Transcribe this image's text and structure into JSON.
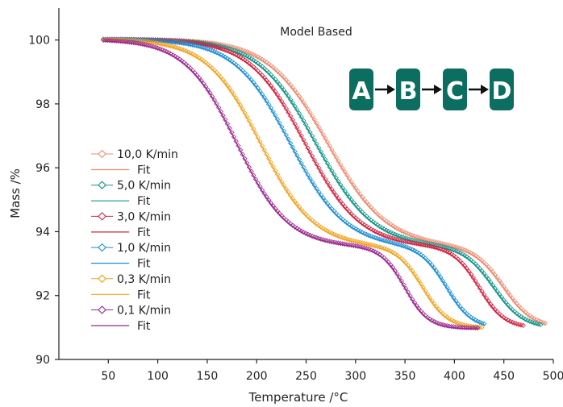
{
  "chart_data": {
    "type": "line",
    "title": "",
    "annotation": "Model Based",
    "xlabel": "Temperature /°C",
    "ylabel": "Mass /%",
    "xlim": [
      0,
      500
    ],
    "ylim": [
      90,
      101
    ],
    "xticks": [
      50,
      100,
      150,
      200,
      250,
      300,
      350,
      400,
      450,
      500
    ],
    "yticks": [
      90,
      92,
      94,
      96,
      98,
      100
    ],
    "grid": false,
    "legend_position": "left",
    "reaction_scheme": [
      "A",
      "B",
      "C",
      "D"
    ],
    "scheme_color": "#0c6e60",
    "series": [
      {
        "name": "10,0 K/min",
        "fit_label": "Fit",
        "color": "#ef8a6e",
        "x_start": 45,
        "x_end": 493,
        "t1": 272,
        "w1": 30,
        "t2": 450,
        "w2": 15,
        "points": [
          [
            45,
            100.0
          ],
          [
            150,
            99.9
          ],
          [
            200,
            99.6
          ],
          [
            250,
            98.6
          ],
          [
            275,
            97.2
          ],
          [
            300,
            95.6
          ],
          [
            325,
            94.5
          ],
          [
            350,
            93.9
          ],
          [
            400,
            93.3
          ],
          [
            430,
            92.6
          ],
          [
            450,
            91.9
          ],
          [
            470,
            91.2
          ],
          [
            493,
            90.9
          ]
        ]
      },
      {
        "name": "5,0 K/min",
        "fit_label": "Fit",
        "color": "#12968a",
        "x_start": 45,
        "x_end": 488,
        "t1": 260,
        "w1": 29,
        "t2": 440,
        "w2": 15,
        "points": [
          [
            45,
            100.0
          ],
          [
            150,
            99.9
          ],
          [
            200,
            99.5
          ],
          [
            250,
            98.0
          ],
          [
            275,
            96.4
          ],
          [
            300,
            95.0
          ],
          [
            325,
            94.2
          ],
          [
            350,
            93.8
          ],
          [
            400,
            93.2
          ],
          [
            430,
            92.2
          ],
          [
            450,
            91.3
          ],
          [
            470,
            91.0
          ],
          [
            488,
            90.9
          ]
        ]
      },
      {
        "name": "3,0 K/min",
        "fit_label": "Fit",
        "color": "#d2233f",
        "x_start": 45,
        "x_end": 470,
        "t1": 249,
        "w1": 28,
        "t2": 425,
        "w2": 13,
        "points": [
          [
            45,
            100.0
          ],
          [
            150,
            99.9
          ],
          [
            200,
            99.3
          ],
          [
            250,
            97.6
          ],
          [
            275,
            96.0
          ],
          [
            300,
            94.6
          ],
          [
            325,
            94.0
          ],
          [
            350,
            93.6
          ],
          [
            400,
            92.9
          ],
          [
            425,
            91.9
          ],
          [
            450,
            91.1
          ],
          [
            470,
            90.9
          ]
        ]
      },
      {
        "name": "1,0 K/min",
        "fit_label": "Fit",
        "color": "#1a8fd4",
        "x_start": 45,
        "x_end": 432,
        "t1": 234,
        "w1": 28,
        "t2": 392,
        "w2": 13,
        "points": [
          [
            45,
            100.0
          ],
          [
            150,
            99.8
          ],
          [
            200,
            98.9
          ],
          [
            225,
            97.8
          ],
          [
            250,
            96.2
          ],
          [
            275,
            95.0
          ],
          [
            300,
            94.0
          ],
          [
            350,
            93.3
          ],
          [
            380,
            92.6
          ],
          [
            400,
            91.7
          ],
          [
            420,
            91.2
          ],
          [
            432,
            91.1
          ]
        ]
      },
      {
        "name": "0,3 K/min",
        "fit_label": "Fit",
        "color": "#f2a21c",
        "x_start": 45,
        "x_end": 428,
        "t1": 204,
        "w1": 27,
        "t2": 368,
        "w2": 13,
        "points": [
          [
            45,
            100.0
          ],
          [
            150,
            99.6
          ],
          [
            175,
            98.9
          ],
          [
            200,
            97.5
          ],
          [
            225,
            95.9
          ],
          [
            250,
            94.5
          ],
          [
            275,
            93.9
          ],
          [
            320,
            93.3
          ],
          [
            350,
            92.6
          ],
          [
            380,
            91.6
          ],
          [
            400,
            91.1
          ],
          [
            428,
            90.9
          ]
        ]
      },
      {
        "name": "0,1 K/min",
        "fit_label": "Fit",
        "color": "#9b278f",
        "x_start": 45,
        "x_end": 425,
        "t1": 180,
        "w1": 26,
        "t2": 350,
        "w2": 12,
        "points": [
          [
            45,
            100.0
          ],
          [
            125,
            99.7
          ],
          [
            150,
            99.2
          ],
          [
            175,
            97.8
          ],
          [
            200,
            96.0
          ],
          [
            225,
            94.6
          ],
          [
            250,
            94.0
          ],
          [
            300,
            93.3
          ],
          [
            330,
            92.5
          ],
          [
            360,
            91.5
          ],
          [
            390,
            91.0
          ],
          [
            425,
            90.8
          ]
        ]
      }
    ]
  }
}
